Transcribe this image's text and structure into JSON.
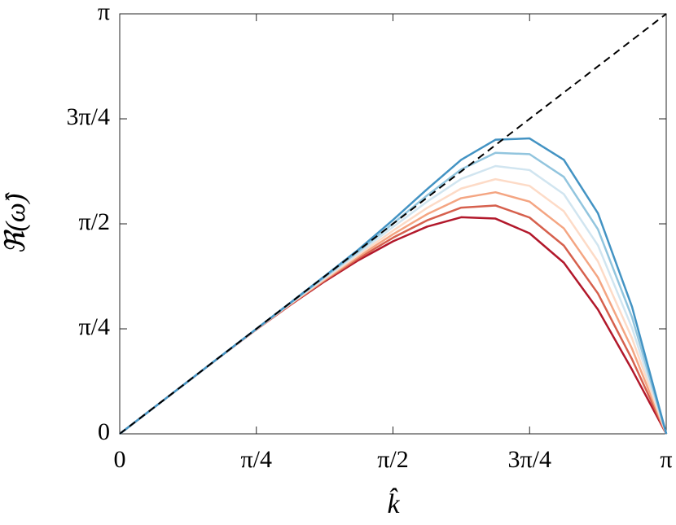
{
  "chart_data": {
    "type": "line",
    "x_label": "k̂",
    "y_label": "ℜ(ω̂)",
    "x": [
      0,
      0.196,
      0.393,
      0.589,
      0.785,
      0.982,
      1.178,
      1.374,
      1.571,
      1.767,
      1.963,
      2.16,
      2.356,
      2.553,
      2.749,
      2.945,
      3.142
    ],
    "series": [
      {
        "color": "#b2182b",
        "values": [
          0,
          0.196,
          0.393,
          0.588,
          0.78,
          0.965,
          1.14,
          1.3,
          1.44,
          1.55,
          1.62,
          1.61,
          1.5,
          1.28,
          0.93,
          0.48,
          0
        ]
      },
      {
        "color": "#d6604d",
        "values": [
          0,
          0.196,
          0.393,
          0.588,
          0.781,
          0.968,
          1.147,
          1.313,
          1.467,
          1.597,
          1.692,
          1.708,
          1.618,
          1.408,
          1.05,
          0.558,
          0
        ]
      },
      {
        "color": "#f4a582",
        "values": [
          0,
          0.196,
          0.393,
          0.588,
          0.782,
          0.971,
          1.153,
          1.327,
          1.493,
          1.643,
          1.763,
          1.807,
          1.737,
          1.537,
          1.17,
          0.637,
          0
        ]
      },
      {
        "color": "#fddbc7",
        "values": [
          0,
          0.196,
          0.393,
          0.589,
          0.783,
          0.974,
          1.16,
          1.34,
          1.52,
          1.69,
          1.835,
          1.905,
          1.855,
          1.665,
          1.29,
          0.715,
          0
        ]
      },
      {
        "color": "#d1e5f0",
        "values": [
          0,
          0.196,
          0.393,
          0.589,
          0.783,
          0.976,
          1.167,
          1.353,
          1.547,
          1.737,
          1.907,
          2.003,
          1.973,
          1.793,
          1.41,
          0.793,
          0
        ]
      },
      {
        "color": "#92c5de",
        "values": [
          0,
          0.196,
          0.393,
          0.589,
          0.784,
          0.979,
          1.173,
          1.367,
          1.573,
          1.783,
          1.978,
          2.102,
          2.092,
          1.922,
          1.53,
          0.872,
          0
        ]
      },
      {
        "color": "#4393c3",
        "values": [
          0,
          0.196,
          0.393,
          0.589,
          0.785,
          0.982,
          1.18,
          1.38,
          1.6,
          1.83,
          2.05,
          2.2,
          2.21,
          2.05,
          1.65,
          0.95,
          0
        ]
      },
      {
        "color": "#000000",
        "dashed": true,
        "values": [
          0,
          0.196,
          0.393,
          0.589,
          0.785,
          0.982,
          1.178,
          1.374,
          1.571,
          1.767,
          1.963,
          2.16,
          2.356,
          2.553,
          2.749,
          2.945,
          3.142
        ]
      }
    ],
    "xlim": [
      0,
      3.1416
    ],
    "ylim": [
      0,
      3.1416
    ],
    "xticks": [
      0,
      {
        "value": 0.7854,
        "label": "π/4"
      },
      {
        "value": 1.5708,
        "label": "π/2"
      },
      {
        "value": 2.3562,
        "label": "3π/4"
      },
      {
        "value": 3.1416,
        "label": "π"
      }
    ],
    "yticks": [
      0,
      {
        "value": 0.7854,
        "label": "π/4"
      },
      {
        "value": 1.5708,
        "label": "π/2"
      },
      {
        "value": 2.3562,
        "label": "3π/4"
      },
      {
        "value": 3.1416,
        "label": "π"
      }
    ],
    "grid": false
  }
}
